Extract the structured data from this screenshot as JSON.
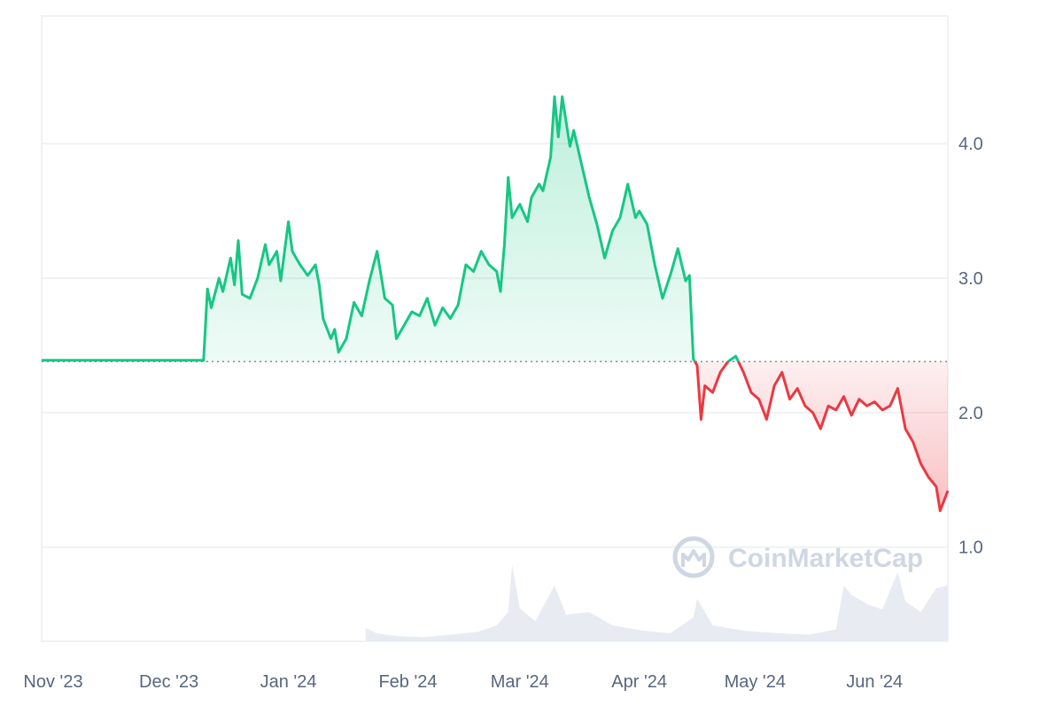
{
  "chart_data": {
    "type": "line",
    "baseline": 2.38,
    "ylim": [
      0.3,
      4.95
    ],
    "y_ticks": [
      1.0,
      2.0,
      3.0,
      4.0
    ],
    "y_tick_labels": [
      "1.0",
      "2.0",
      "3.0",
      "4.0"
    ],
    "x_ticks": [
      {
        "label": "Nov '23",
        "date": "2023-11-01"
      },
      {
        "label": "Dec '23",
        "date": "2023-12-01"
      },
      {
        "label": "Jan '24",
        "date": "2024-01-01"
      },
      {
        "label": "Feb '24",
        "date": "2024-02-01"
      },
      {
        "label": "Mar '24",
        "date": "2024-03-01"
      },
      {
        "label": "Apr '24",
        "date": "2024-04-01"
      },
      {
        "label": "May '24",
        "date": "2024-05-01"
      },
      {
        "label": "Jun '24",
        "date": "2024-06-01"
      }
    ],
    "xlim": [
      "2023-11-01",
      "2024-06-23"
    ],
    "up_color": "#16c784",
    "down_color": "#ea3943",
    "grid": true,
    "series": [
      {
        "points": [
          [
            "2023-11-01",
            2.39
          ],
          [
            "2023-11-05",
            2.39
          ],
          [
            "2023-11-10",
            2.39
          ],
          [
            "2023-11-15",
            2.39
          ],
          [
            "2023-11-20",
            2.39
          ],
          [
            "2023-11-25",
            2.39
          ],
          [
            "2023-11-30",
            2.39
          ],
          [
            "2023-12-05",
            2.39
          ],
          [
            "2023-12-10",
            2.39
          ],
          [
            "2023-12-13",
            2.39
          ],
          [
            "2023-12-14",
            2.92
          ],
          [
            "2023-12-15",
            2.78
          ],
          [
            "2023-12-17",
            3.0
          ],
          [
            "2023-12-18",
            2.9
          ],
          [
            "2023-12-20",
            3.15
          ],
          [
            "2023-12-21",
            2.95
          ],
          [
            "2023-12-22",
            3.28
          ],
          [
            "2023-12-23",
            2.88
          ],
          [
            "2023-12-25",
            2.85
          ],
          [
            "2023-12-27",
            3.0
          ],
          [
            "2023-12-29",
            3.25
          ],
          [
            "2023-12-30",
            3.1
          ],
          [
            "2024-01-01",
            3.2
          ],
          [
            "2024-01-02",
            2.98
          ],
          [
            "2024-01-04",
            3.42
          ],
          [
            "2024-01-05",
            3.2
          ],
          [
            "2024-01-07",
            3.1
          ],
          [
            "2024-01-09",
            3.02
          ],
          [
            "2024-01-11",
            3.1
          ],
          [
            "2024-01-12",
            2.95
          ],
          [
            "2024-01-13",
            2.7
          ],
          [
            "2024-01-15",
            2.55
          ],
          [
            "2024-01-16",
            2.62
          ],
          [
            "2024-01-17",
            2.45
          ],
          [
            "2024-01-19",
            2.55
          ],
          [
            "2024-01-21",
            2.82
          ],
          [
            "2024-01-23",
            2.72
          ],
          [
            "2024-01-25",
            2.98
          ],
          [
            "2024-01-27",
            3.2
          ],
          [
            "2024-01-29",
            2.85
          ],
          [
            "2024-01-31",
            2.8
          ],
          [
            "2024-02-01",
            2.55
          ],
          [
            "2024-02-03",
            2.65
          ],
          [
            "2024-02-05",
            2.75
          ],
          [
            "2024-02-07",
            2.72
          ],
          [
            "2024-02-09",
            2.85
          ],
          [
            "2024-02-11",
            2.65
          ],
          [
            "2024-02-13",
            2.78
          ],
          [
            "2024-02-15",
            2.7
          ],
          [
            "2024-02-17",
            2.8
          ],
          [
            "2024-02-19",
            3.1
          ],
          [
            "2024-02-21",
            3.05
          ],
          [
            "2024-02-23",
            3.2
          ],
          [
            "2024-02-25",
            3.1
          ],
          [
            "2024-02-27",
            3.05
          ],
          [
            "2024-02-28",
            2.9
          ],
          [
            "2024-02-29",
            3.25
          ],
          [
            "2024-03-01",
            3.75
          ],
          [
            "2024-03-02",
            3.45
          ],
          [
            "2024-03-04",
            3.55
          ],
          [
            "2024-03-06",
            3.42
          ],
          [
            "2024-03-07",
            3.6
          ],
          [
            "2024-03-09",
            3.7
          ],
          [
            "2024-03-10",
            3.65
          ],
          [
            "2024-03-12",
            3.9
          ],
          [
            "2024-03-13",
            4.35
          ],
          [
            "2024-03-14",
            4.05
          ],
          [
            "2024-03-15",
            4.35
          ],
          [
            "2024-03-17",
            3.98
          ],
          [
            "2024-03-18",
            4.1
          ],
          [
            "2024-03-20",
            3.85
          ],
          [
            "2024-03-22",
            3.6
          ],
          [
            "2024-03-24",
            3.4
          ],
          [
            "2024-03-26",
            3.15
          ],
          [
            "2024-03-28",
            3.35
          ],
          [
            "2024-03-30",
            3.45
          ],
          [
            "2024-04-01",
            3.7
          ],
          [
            "2024-04-03",
            3.45
          ],
          [
            "2024-04-04",
            3.5
          ],
          [
            "2024-04-06",
            3.4
          ],
          [
            "2024-04-08",
            3.1
          ],
          [
            "2024-04-10",
            2.85
          ],
          [
            "2024-04-12",
            3.02
          ],
          [
            "2024-04-14",
            3.22
          ],
          [
            "2024-04-16",
            2.98
          ],
          [
            "2024-04-17",
            3.02
          ],
          [
            "2024-04-18",
            2.4
          ],
          [
            "2024-04-19",
            2.35
          ],
          [
            "2024-04-20",
            1.95
          ],
          [
            "2024-04-21",
            2.2
          ],
          [
            "2024-04-23",
            2.15
          ],
          [
            "2024-04-25",
            2.3
          ],
          [
            "2024-04-27",
            2.38
          ],
          [
            "2024-04-29",
            2.42
          ],
          [
            "2024-05-01",
            2.3
          ],
          [
            "2024-05-03",
            2.15
          ],
          [
            "2024-05-05",
            2.1
          ],
          [
            "2024-05-07",
            1.95
          ],
          [
            "2024-05-09",
            2.2
          ],
          [
            "2024-05-11",
            2.3
          ],
          [
            "2024-05-13",
            2.1
          ],
          [
            "2024-05-15",
            2.18
          ],
          [
            "2024-05-17",
            2.05
          ],
          [
            "2024-05-19",
            2.0
          ],
          [
            "2024-05-21",
            1.88
          ],
          [
            "2024-05-23",
            2.05
          ],
          [
            "2024-05-25",
            2.02
          ],
          [
            "2024-05-27",
            2.12
          ],
          [
            "2024-05-29",
            1.98
          ],
          [
            "2024-05-31",
            2.1
          ],
          [
            "2024-06-02",
            2.05
          ],
          [
            "2024-06-04",
            2.08
          ],
          [
            "2024-06-06",
            2.02
          ],
          [
            "2024-06-08",
            2.05
          ],
          [
            "2024-06-10",
            2.18
          ],
          [
            "2024-06-12",
            1.88
          ],
          [
            "2024-06-14",
            1.78
          ],
          [
            "2024-06-16",
            1.62
          ],
          [
            "2024-06-18",
            1.52
          ],
          [
            "2024-06-20",
            1.45
          ],
          [
            "2024-06-21",
            1.27
          ],
          [
            "2024-06-23",
            1.42
          ]
        ]
      }
    ],
    "volume": {
      "color": "#e8ecf2",
      "points": [
        [
          "2024-01-24",
          0.1
        ],
        [
          "2024-01-27",
          0.06
        ],
        [
          "2024-02-01",
          0.04
        ],
        [
          "2024-02-08",
          0.03
        ],
        [
          "2024-02-15",
          0.05
        ],
        [
          "2024-02-22",
          0.07
        ],
        [
          "2024-02-27",
          0.12
        ],
        [
          "2024-03-01",
          0.22
        ],
        [
          "2024-03-02",
          0.58
        ],
        [
          "2024-03-04",
          0.25
        ],
        [
          "2024-03-08",
          0.15
        ],
        [
          "2024-03-13",
          0.42
        ],
        [
          "2024-03-16",
          0.2
        ],
        [
          "2024-03-22",
          0.22
        ],
        [
          "2024-03-28",
          0.12
        ],
        [
          "2024-04-05",
          0.08
        ],
        [
          "2024-04-12",
          0.06
        ],
        [
          "2024-04-18",
          0.18
        ],
        [
          "2024-04-19",
          0.32
        ],
        [
          "2024-04-23",
          0.12
        ],
        [
          "2024-05-01",
          0.08
        ],
        [
          "2024-05-10",
          0.06
        ],
        [
          "2024-05-18",
          0.05
        ],
        [
          "2024-05-25",
          0.09
        ],
        [
          "2024-05-27",
          0.42
        ],
        [
          "2024-05-29",
          0.35
        ],
        [
          "2024-06-02",
          0.28
        ],
        [
          "2024-06-06",
          0.24
        ],
        [
          "2024-06-10",
          0.52
        ],
        [
          "2024-06-12",
          0.3
        ],
        [
          "2024-06-16",
          0.22
        ],
        [
          "2024-06-20",
          0.4
        ],
        [
          "2024-06-23",
          0.42
        ]
      ]
    },
    "watermark": "CoinMarketCap"
  }
}
